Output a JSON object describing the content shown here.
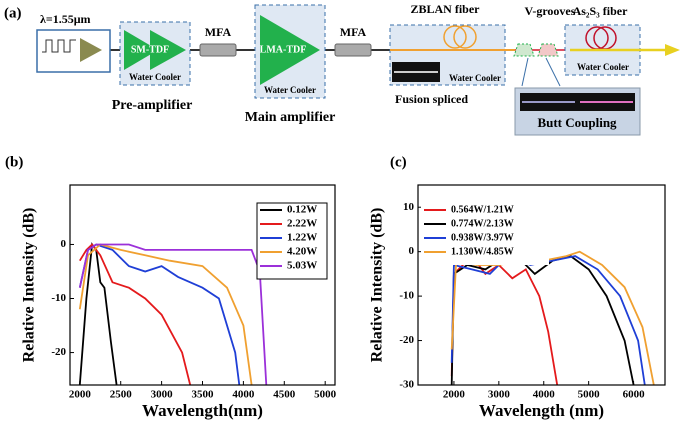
{
  "diagram": {
    "panel": "(a)",
    "seed": "λ=1.55μm",
    "pre_fiber": "SM-TDF",
    "pre_cooler": "Water Cooler",
    "pre_label": "Pre-amplifier",
    "mfa_1": "MFA",
    "main_fiber": "LMA-TDF",
    "main_cooler": "Water Cooler",
    "main_label": "Main amplifier",
    "mfa_2": "MFA",
    "zblan": "ZBLAN fiber",
    "zblan_cooler": "Water Cooler",
    "splice": "Fusion spliced",
    "vgrooves": "V-grooves",
    "as2s3": "As₂S₃ fiber",
    "as2s3_cooler": "Water Cooler",
    "butt": "Butt Coupling"
  },
  "chart_data": [
    {
      "type": "line",
      "label": "(b)",
      "y_label": "Relative Intensity (dB)",
      "x_label": "Wavelength(nm)",
      "xlim": [
        1880,
        5120
      ],
      "ylim": [
        -26,
        11
      ],
      "xticks": [
        2000,
        2500,
        3000,
        3500,
        4000,
        4500,
        5000
      ],
      "yticks": [
        -20,
        -10,
        0
      ],
      "legend": "upper-right",
      "series": [
        {
          "name": "0.12W",
          "color": "#000000",
          "x": [
            2000,
            2080,
            2150,
            2200,
            2250,
            2300,
            2380,
            2450
          ],
          "values": [
            -26,
            -10,
            0,
            -1,
            -7,
            -8,
            -18,
            -26
          ]
        },
        {
          "name": "2.22W",
          "color": "#e41a1c",
          "x": [
            2000,
            2080,
            2150,
            2250,
            2400,
            2600,
            2800,
            3000,
            3250,
            3350
          ],
          "values": [
            -3,
            -1,
            0,
            -2,
            -7,
            -8,
            -10,
            -13,
            -20,
            -26
          ]
        },
        {
          "name": "1.22W",
          "color": "#1f3fd6",
          "x": [
            2000,
            2100,
            2200,
            2400,
            2600,
            2800,
            3000,
            3200,
            3500,
            3700,
            3900,
            3950
          ],
          "values": [
            -8,
            -1,
            0,
            -1,
            -4,
            -5,
            -4,
            -6,
            -8,
            -10,
            -20,
            -26
          ]
        },
        {
          "name": "4.20W",
          "color": "#f0a030",
          "x": [
            2000,
            2100,
            2250,
            2500,
            2800,
            3100,
            3500,
            3800,
            4000,
            4100
          ],
          "values": [
            -12,
            -2,
            0,
            -1,
            -2,
            -3,
            -4,
            -8,
            -15,
            -26
          ]
        },
        {
          "name": "5.03W",
          "color": "#9b30d9",
          "x": [
            2000,
            2100,
            2200,
            2600,
            2800,
            3200,
            3800,
            4100,
            4200,
            4280
          ],
          "values": [
            -8,
            -1,
            0,
            0,
            -1,
            -1,
            -1,
            -1,
            -5,
            -26
          ]
        }
      ]
    },
    {
      "type": "line",
      "label": "(c)",
      "y_label": "Relative Intensity (dB)",
      "x_label": "Wavelength (nm)",
      "xlim": [
        1200,
        6700
      ],
      "ylim": [
        -30,
        15
      ],
      "xticks": [
        2000,
        3000,
        4000,
        5000,
        6000
      ],
      "yticks": [
        -30,
        -20,
        -10,
        0,
        10
      ],
      "legend": "upper-left",
      "series": [
        {
          "name": "0.564W/1.21W",
          "color": "#e41a1c",
          "x": [
            1950,
            2000,
            2200,
            2400,
            2700,
            3000,
            3300,
            3600,
            3900,
            4100,
            4300
          ],
          "values": [
            -28,
            -5,
            -3,
            -1,
            -5,
            -3,
            -6,
            -4,
            -10,
            -18,
            -30
          ]
        },
        {
          "name": "0.774W/2.13W",
          "color": "#000000",
          "x": [
            1950,
            2000,
            2300,
            2700,
            3000,
            3400,
            3800,
            4200,
            4600,
            5000,
            5400,
            5800,
            6000
          ],
          "values": [
            -30,
            -5,
            -3,
            -4,
            -2,
            -1,
            -5,
            -2,
            -1,
            -4,
            -10,
            -20,
            -30
          ]
        },
        {
          "name": "0.938W/3.97W",
          "color": "#1f3fd6",
          "x": [
            1950,
            2000,
            2400,
            2800,
            3200,
            3700,
            4200,
            4700,
            5200,
            5700,
            6100,
            6250
          ],
          "values": [
            -25,
            -3,
            -4,
            -5,
            -1,
            -3,
            -2,
            -1,
            -4,
            -10,
            -20,
            -30
          ]
        },
        {
          "name": "1.130W/4.85W",
          "color": "#f0a030",
          "x": [
            1950,
            2050,
            2500,
            3000,
            3500,
            4000,
            4500,
            4800,
            5300,
            5800,
            6200,
            6450
          ],
          "values": [
            -22,
            -2,
            -3,
            -3,
            -2,
            -2,
            -1,
            0,
            -3,
            -8,
            -17,
            -30
          ]
        }
      ]
    }
  ]
}
